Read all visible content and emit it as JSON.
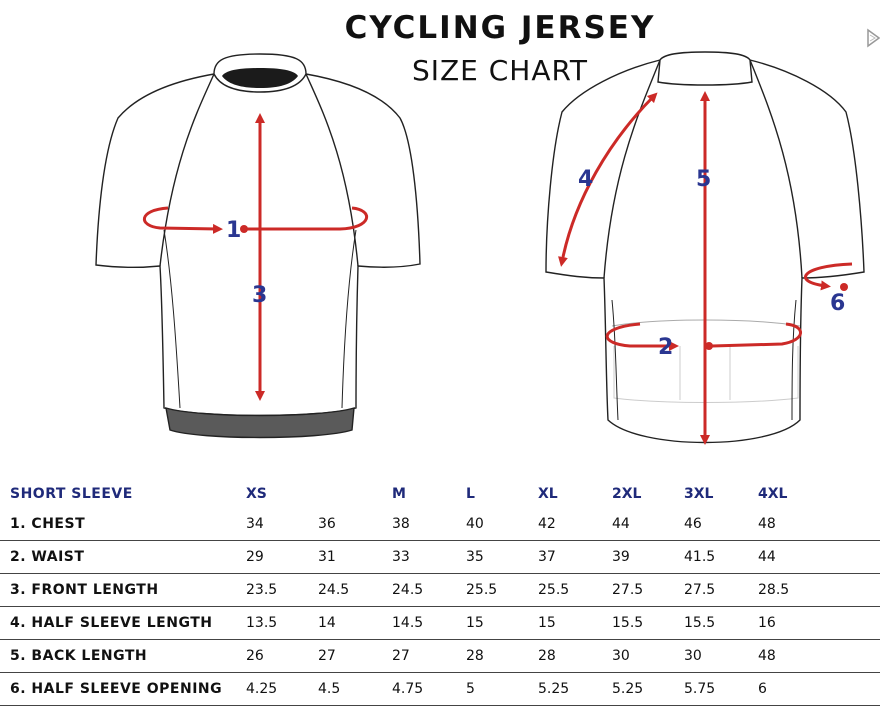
{
  "header": {
    "title": "CYCLING JERSEY",
    "subtitle": "SIZE CHART"
  },
  "markers": {
    "m1": "1",
    "m2": "2",
    "m3": "3",
    "m4": "4",
    "m5": "5",
    "m6": "6"
  },
  "colors": {
    "arrow": "#cc2a27",
    "marker": "#2a3691",
    "header_text": "#1f2a7a"
  },
  "table": {
    "header_label": "SHORT SLEEVE",
    "columns": [
      "XS",
      "",
      "M",
      "L",
      "XL",
      "2XL",
      "3XL",
      "4XL"
    ],
    "rows": [
      {
        "label": "1. CHEST",
        "values": [
          "34",
          "36",
          "38",
          "40",
          "42",
          "44",
          "46",
          "48"
        ]
      },
      {
        "label": "2. WAIST",
        "values": [
          "29",
          "31",
          "33",
          "35",
          "37",
          "39",
          "41.5",
          "44"
        ]
      },
      {
        "label": "3. FRONT LENGTH",
        "values": [
          "23.5",
          "24.5",
          "24.5",
          "25.5",
          "25.5",
          "27.5",
          "27.5",
          "28.5"
        ]
      },
      {
        "label": "4. HALF SLEEVE LENGTH",
        "values": [
          "13.5",
          "14",
          "14.5",
          "15",
          "15",
          "15.5",
          "15.5",
          "16"
        ]
      },
      {
        "label": "5. BACK LENGTH",
        "values": [
          "26",
          "27",
          "27",
          "28",
          "28",
          "30",
          "30",
          "48"
        ]
      },
      {
        "label": "6. HALF SLEEVE OPENING",
        "values": [
          "4.25",
          "4.5",
          "4.75",
          "5",
          "5.25",
          "5.25",
          "5.75",
          "6"
        ]
      }
    ]
  }
}
